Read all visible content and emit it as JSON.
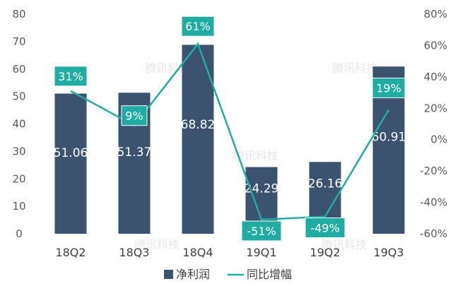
{
  "chart_data": {
    "type": "bar+line",
    "categories": [
      "18Q2",
      "18Q3",
      "18Q4",
      "19Q1",
      "19Q2",
      "19Q3"
    ],
    "series": [
      {
        "name": "净利润",
        "type": "bar",
        "axis": "left",
        "values": [
          51.06,
          51.37,
          68.82,
          24.29,
          26.16,
          60.91
        ],
        "labels": [
          "51.06",
          "51.37",
          "68.82",
          "24.29",
          "26.16",
          "60.91"
        ]
      },
      {
        "name": "同比增幅",
        "type": "line",
        "axis": "right",
        "values": [
          31,
          9,
          61,
          -51,
          -49,
          19
        ],
        "labels": [
          "31%",
          "9%",
          "61%",
          "-51%",
          "-49%",
          "19%"
        ]
      }
    ],
    "left_axis": {
      "min": 0,
      "max": 80,
      "ticks": [
        "0",
        "10",
        "20",
        "30",
        "40",
        "50",
        "60",
        "70",
        "80"
      ]
    },
    "right_axis": {
      "min": -60,
      "max": 80,
      "unit": "%",
      "ticks": [
        "-60%",
        "-40%",
        "-20%",
        "0%",
        "20%",
        "40%",
        "60%",
        "80%"
      ]
    },
    "grid": false,
    "legend_position": "bottom",
    "colors": {
      "bar": "#3c5370",
      "line": "#1fada3",
      "label_box": "#1fada3",
      "bar_text": "#ffffff"
    }
  },
  "watermark": {
    "text": "腾讯科技"
  }
}
